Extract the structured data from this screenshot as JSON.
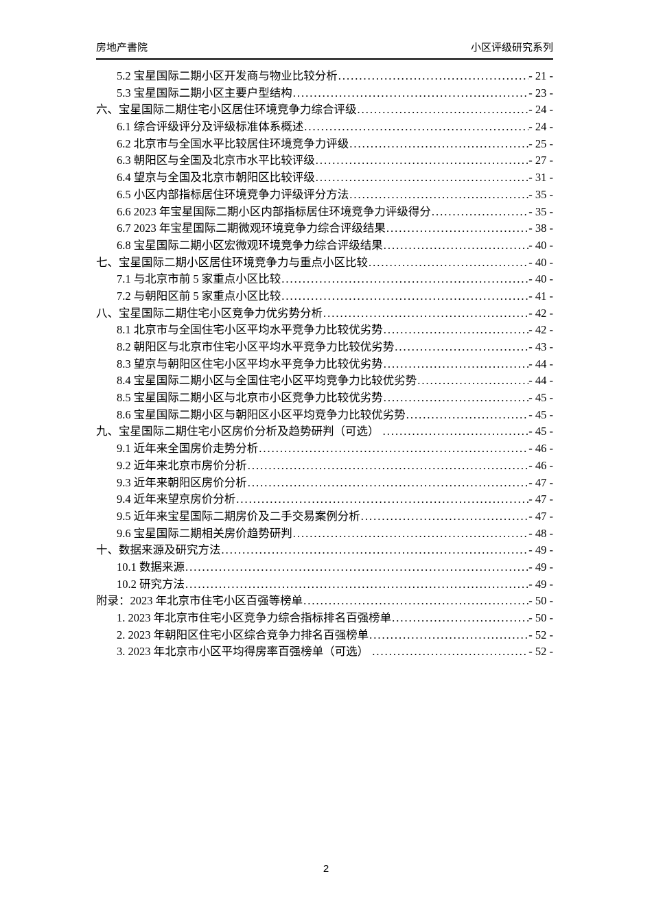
{
  "header": {
    "left": "房地产書院",
    "right": "小区评级研究系列"
  },
  "toc": {
    "entries": [
      {
        "level": 2,
        "label": "5.2 宝星国际二期小区开发商与物业比较分析",
        "page": "- 21 -"
      },
      {
        "level": 2,
        "label": "5.3 宝星国际二期小区主要户型结构",
        "page": "- 23 -"
      },
      {
        "level": 1,
        "label": "六、宝星国际二期住宅小区居住环境竞争力综合评级",
        "page": "- 24 -"
      },
      {
        "level": 2,
        "label": "6.1 综合评级评分及评级标准体系概述",
        "page": "- 24 -"
      },
      {
        "level": 2,
        "label": "6.2 北京市与全国水平比较居住环境竞争力评级",
        "page": "- 25 -"
      },
      {
        "level": 2,
        "label": "6.3 朝阳区与全国及北京市水平比较评级",
        "page": "- 27 -"
      },
      {
        "level": 2,
        "label": "6.4 望京与全国及北京市朝阳区比较评级",
        "page": "- 31 -"
      },
      {
        "level": 2,
        "label": "6.5 小区内部指标居住环境竞争力评级评分方法",
        "page": "- 35 -"
      },
      {
        "level": 2,
        "label": "6.6 2023 年宝星国际二期小区内部指标居住环境竞争力评级得分",
        "page": "- 35 -"
      },
      {
        "level": 2,
        "label": "6.7 2023 年宝星国际二期微观环境竞争力综合评级结果",
        "page": "- 38 -"
      },
      {
        "level": 2,
        "label": "6.8 宝星国际二期小区宏微观环境竞争力综合评级结果",
        "page": "- 40 -"
      },
      {
        "level": 1,
        "label": "七、宝星国际二期小区居住环境竞争力与重点小区比较",
        "page": "- 40 -"
      },
      {
        "level": 2,
        "label": "7.1 与北京市前 5 家重点小区比较",
        "page": "- 40 -"
      },
      {
        "level": 2,
        "label": "7.2 与朝阳区前 5 家重点小区比较",
        "page": "- 41 -"
      },
      {
        "level": 1,
        "label": "八、宝星国际二期住宅小区竞争力优劣势分析",
        "page": "- 42 -"
      },
      {
        "level": 2,
        "label": "8.1 北京市与全国住宅小区平均水平竞争力比较优劣势",
        "page": "- 42 -"
      },
      {
        "level": 2,
        "label": "8.2 朝阳区与北京市住宅小区平均水平竞争力比较优劣势",
        "page": "- 43 -"
      },
      {
        "level": 2,
        "label": "8.3 望京与朝阳区住宅小区平均水平竞争力比较优劣势",
        "page": "- 44 -"
      },
      {
        "level": 2,
        "label": "8.4 宝星国际二期小区与全国住宅小区平均竞争力比较优劣势",
        "page": "- 44 -"
      },
      {
        "level": 2,
        "label": "8.5 宝星国际二期小区与北京市小区竞争力比较优劣势",
        "page": "- 45 -"
      },
      {
        "level": 2,
        "label": "8.6 宝星国际二期小区与朝阳区小区平均竞争力比较优劣势",
        "page": "- 45 -"
      },
      {
        "level": 1,
        "label": "九、宝星国际二期住宅小区房价分析及趋势研判（可选） ",
        "page": "- 45 -"
      },
      {
        "level": 2,
        "label": "9.1 近年来全国房价走势分析",
        "page": "- 46 -"
      },
      {
        "level": 2,
        "label": "9.2 近年来北京市房价分析",
        "page": "- 46 -"
      },
      {
        "level": 2,
        "label": "9.3 近年来朝阳区房价分析",
        "page": "- 47 -"
      },
      {
        "level": 2,
        "label": "9.4 近年来望京房价分析",
        "page": "- 47 -"
      },
      {
        "level": 2,
        "label": "9.5 近年来宝星国际二期房价及二手交易案例分析",
        "page": "- 47 -"
      },
      {
        "level": 2,
        "label": "9.6 宝星国际二期相关房价趋势研判",
        "page": "- 48 -"
      },
      {
        "level": 1,
        "label": "十、数据来源及研究方法",
        "page": "- 49 -"
      },
      {
        "level": 2,
        "label": "10.1 数据来源",
        "page": "- 49 -"
      },
      {
        "level": 2,
        "label": "10.2 研究方法",
        "page": "- 49 -"
      },
      {
        "level": 1,
        "label": "附录：2023 年北京市住宅小区百强等榜单",
        "page": "- 50 -"
      },
      {
        "level": 2,
        "label": "1. 2023 年北京市住宅小区竞争力综合指标排名百强榜单",
        "page": "- 50 -"
      },
      {
        "level": 2,
        "label": "2. 2023 年朝阳区住宅小区综合竞争力排名百强榜单",
        "page": "- 52 -"
      },
      {
        "level": 2,
        "label": "3. 2023 年北京市小区平均得房率百强榜单（可选） ",
        "page": "- 52 -"
      }
    ]
  },
  "footer": {
    "page_number": "2"
  }
}
